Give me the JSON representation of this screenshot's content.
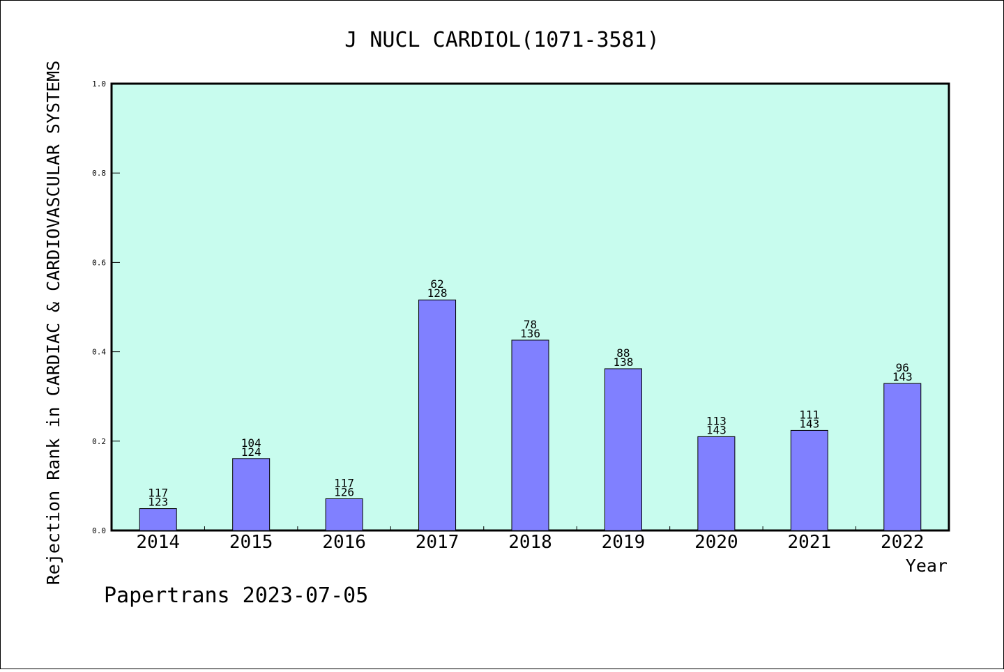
{
  "chart_data": {
    "type": "bar",
    "title": "J NUCL CARDIOL(1071-3581)",
    "xlabel": "Year",
    "ylabel": "Rejection Rank in CARDIAC & CARDIOVASCULAR SYSTEMS",
    "ylim": [
      0,
      1.0
    ],
    "yticks": [
      "0.0",
      "0.2",
      "0.4",
      "0.6",
      "0.8",
      "1.0"
    ],
    "ytick_values": [
      0,
      0.2,
      0.4,
      0.6,
      0.8,
      1.0
    ],
    "categories": [
      "2014",
      "2015",
      "2016",
      "2017",
      "2018",
      "2019",
      "2020",
      "2021",
      "2022"
    ],
    "values": [
      0.049,
      0.161,
      0.071,
      0.516,
      0.426,
      0.362,
      0.21,
      0.224,
      0.329
    ],
    "rank": [
      "117",
      "104",
      "117",
      "62",
      "78",
      "88",
      "113",
      "111",
      "96"
    ],
    "total": [
      "123",
      "124",
      "126",
      "128",
      "136",
      "138",
      "143",
      "143",
      "143"
    ],
    "colors": {
      "plot_bg": "#c8fcee",
      "bar": "#8080ff",
      "axis": "#000000"
    },
    "grid": false,
    "legend": "none"
  },
  "footer": {
    "text": "Papertrans 2023-07-05"
  }
}
